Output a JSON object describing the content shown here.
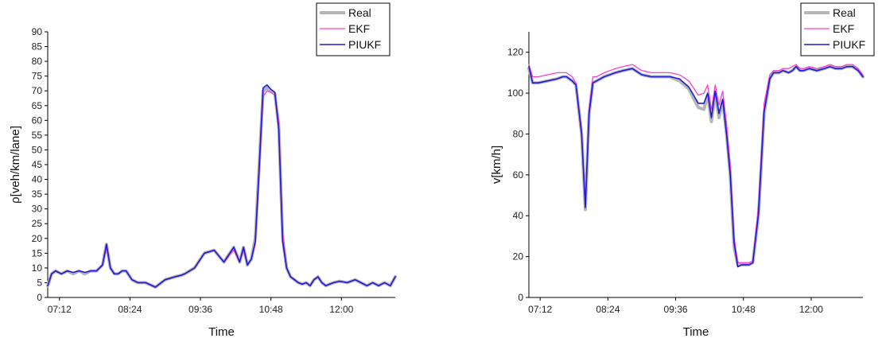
{
  "chart_data": [
    {
      "type": "line",
      "xlabel": "Time",
      "ylabel": "ρ[veh/km/lane]",
      "x_ticks": [
        "07:12",
        "08:24",
        "09:36",
        "10:48",
        "12:00"
      ],
      "x_tick_minutes": [
        432,
        504,
        576,
        648,
        720
      ],
      "xlim": [
        420,
        775
      ],
      "ylim": [
        0,
        90
      ],
      "y_ticks": [
        0,
        5,
        10,
        15,
        20,
        25,
        30,
        35,
        40,
        45,
        50,
        55,
        60,
        65,
        70,
        75,
        80,
        85,
        90
      ],
      "grid": false,
      "legend_position": "top-right",
      "legend": [
        "Real",
        "EKF",
        "PIUKF"
      ],
      "x": [
        420,
        424,
        428,
        434,
        440,
        446,
        452,
        458,
        464,
        470,
        476,
        480,
        484,
        488,
        492,
        496,
        500,
        506,
        512,
        520,
        530,
        540,
        550,
        556,
        560,
        570,
        580,
        590,
        600,
        610,
        616,
        620,
        624,
        628,
        632,
        636,
        640,
        644,
        648,
        652,
        656,
        660,
        664,
        668,
        672,
        676,
        680,
        684,
        688,
        692,
        696,
        700,
        704,
        708,
        712,
        718,
        726,
        734,
        740,
        746,
        752,
        758,
        764,
        770,
        775
      ],
      "series": [
        {
          "name": "Real",
          "color": "#b5b5b5",
          "values": [
            4,
            8,
            9,
            8,
            9,
            8,
            9,
            8,
            9,
            9,
            11,
            18,
            10,
            8,
            8,
            9,
            9,
            6,
            5,
            5,
            3.5,
            6,
            7,
            7.5,
            8,
            10,
            15,
            16,
            12,
            17,
            12,
            17,
            11,
            13,
            20,
            45,
            70,
            71,
            70,
            69,
            58,
            20,
            10,
            7,
            6,
            5,
            4.5,
            5,
            4,
            6,
            7,
            5,
            4,
            4.5,
            5,
            5.5,
            5,
            6,
            5,
            4,
            5,
            4,
            5,
            4,
            7
          ]
        },
        {
          "name": "EKF",
          "color": "#ff3ccf",
          "values": [
            4,
            8,
            9,
            8,
            9,
            8.5,
            9,
            8.5,
            9,
            9,
            11,
            17,
            10,
            8,
            8,
            9,
            9,
            6,
            5,
            5,
            3.5,
            6,
            7,
            7.5,
            8,
            10,
            15,
            16,
            12,
            16,
            12,
            16,
            11,
            13,
            18,
            42,
            68,
            70,
            69.5,
            68.5,
            60,
            22,
            10,
            7,
            6,
            5,
            4.5,
            5,
            4,
            6,
            7,
            5,
            4,
            4.5,
            5,
            5.5,
            5,
            6,
            5,
            4,
            5,
            4,
            5,
            4,
            7
          ]
        },
        {
          "name": "PIUKF",
          "color": "#1b1bd9",
          "values": [
            4,
            8,
            9,
            8,
            9,
            8.5,
            9,
            8.5,
            9,
            9,
            11,
            18,
            10,
            8,
            8,
            9,
            9,
            6,
            5,
            5,
            3.5,
            6,
            7,
            7.5,
            8,
            10,
            15,
            16,
            12,
            17,
            12,
            17,
            11,
            13,
            19,
            44,
            71,
            72,
            70.5,
            69.5,
            57,
            19,
            10,
            7,
            6,
            5,
            4.5,
            5,
            4,
            6,
            7,
            5,
            4,
            4.5,
            5,
            5.5,
            5,
            6,
            5,
            4,
            5,
            4,
            5,
            4,
            7
          ]
        }
      ]
    },
    {
      "type": "line",
      "xlabel": "Time",
      "ylabel": "v[km/h]",
      "x_ticks": [
        "07:12",
        "08:24",
        "09:36",
        "10:48",
        "12:00"
      ],
      "x_tick_minutes": [
        432,
        504,
        576,
        648,
        720
      ],
      "xlim": [
        420,
        775
      ],
      "ylim": [
        0,
        130
      ],
      "y_ticks": [
        0,
        20,
        40,
        60,
        80,
        100,
        120
      ],
      "grid": false,
      "legend_position": "top-right",
      "legend": [
        "Real",
        "EKF",
        "PIUKF"
      ],
      "x": [
        420,
        424,
        430,
        440,
        450,
        456,
        460,
        466,
        470,
        476,
        480,
        484,
        488,
        492,
        500,
        506,
        512,
        520,
        530,
        540,
        550,
        560,
        570,
        580,
        590,
        600,
        606,
        610,
        614,
        618,
        622,
        626,
        630,
        634,
        638,
        642,
        646,
        650,
        654,
        658,
        664,
        670,
        676,
        680,
        686,
        690,
        696,
        700,
        704,
        708,
        712,
        718,
        726,
        734,
        740,
        746,
        752,
        758,
        764,
        770,
        775
      ],
      "series": [
        {
          "name": "Real",
          "color": "#b5b5b5",
          "values": [
            112,
            105,
            105,
            106,
            107,
            108,
            108,
            106,
            104,
            80,
            43,
            90,
            105,
            106,
            108,
            109,
            110,
            111,
            112,
            109,
            108,
            108,
            108,
            106,
            102,
            93,
            92,
            99,
            86,
            100,
            88,
            96,
            80,
            60,
            25,
            16,
            16,
            16,
            16,
            17,
            40,
            90,
            107,
            110,
            110,
            111,
            110,
            111,
            113,
            111,
            111,
            112,
            111,
            112,
            113,
            112,
            112,
            113,
            113,
            111,
            108
          ]
        },
        {
          "name": "EKF",
          "color": "#ff3ccf",
          "values": [
            114,
            108,
            108,
            109,
            110,
            110,
            110,
            108,
            105,
            82,
            45,
            92,
            108,
            108,
            110,
            111,
            112,
            113,
            114,
            111,
            110,
            110,
            110,
            109,
            106,
            99,
            100,
            104,
            92,
            104,
            94,
            101,
            85,
            65,
            30,
            17,
            17,
            17,
            17,
            18,
            45,
            95,
            109,
            111,
            111,
            112,
            112,
            113,
            114,
            112,
            112,
            113,
            112,
            113,
            114,
            113,
            113,
            114,
            114,
            112,
            109
          ]
        },
        {
          "name": "PIUKF",
          "color": "#1b1bd9",
          "values": [
            113,
            105,
            105,
            106,
            107,
            108,
            108,
            106,
            104,
            80,
            44,
            90,
            105,
            106,
            108,
            109,
            110,
            111,
            112,
            109,
            108,
            108,
            108,
            107,
            103,
            95,
            95,
            100,
            88,
            101,
            90,
            97,
            80,
            60,
            27,
            15,
            16,
            16,
            16,
            17,
            41,
            91,
            107,
            110,
            110,
            111,
            110,
            111,
            113,
            111,
            111,
            112,
            111,
            112,
            113,
            112,
            112,
            113,
            113,
            111,
            108
          ]
        }
      ]
    }
  ]
}
